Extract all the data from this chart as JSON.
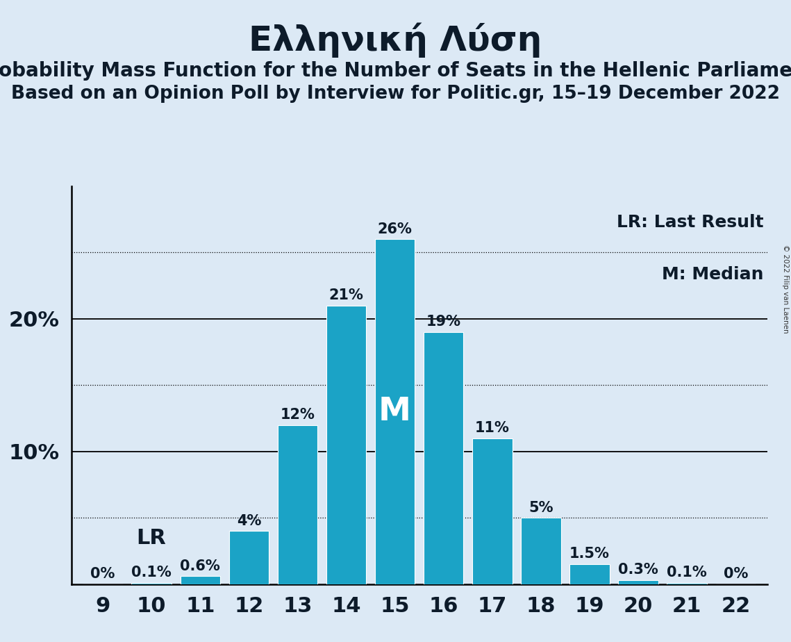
{
  "title": "Ελληνική Λύση",
  "subtitle1": "Probability Mass Function for the Number of Seats in the Hellenic Parliament",
  "subtitle2": "Based on an Opinion Poll by Interview for Politic.gr, 15–19 December 2022",
  "copyright": "© 2022 Filip van Laenen",
  "seats": [
    9,
    10,
    11,
    12,
    13,
    14,
    15,
    16,
    17,
    18,
    19,
    20,
    21,
    22
  ],
  "probabilities": [
    0.0,
    0.1,
    0.6,
    4.0,
    12.0,
    21.0,
    26.0,
    19.0,
    11.0,
    5.0,
    1.5,
    0.3,
    0.1,
    0.0
  ],
  "bar_color": "#1BA3C6",
  "bg_color": "#dce9f5",
  "label_color": "#0d1b2a",
  "lr_seat": 10,
  "median_seat": 15,
  "legend_lr": "LR: Last Result",
  "legend_m": "M: Median",
  "yticks_solid": [
    10,
    20
  ],
  "yticks_dotted": [
    5,
    15,
    25
  ],
  "ylim": [
    0,
    30
  ],
  "bar_label_fontsize": 15,
  "axis_tick_fontsize": 22,
  "title_fontsize": 36,
  "subtitle1_fontsize": 20,
  "subtitle2_fontsize": 19,
  "legend_fontsize": 18,
  "lr_label_fontsize": 22,
  "median_label_fontsize": 34
}
